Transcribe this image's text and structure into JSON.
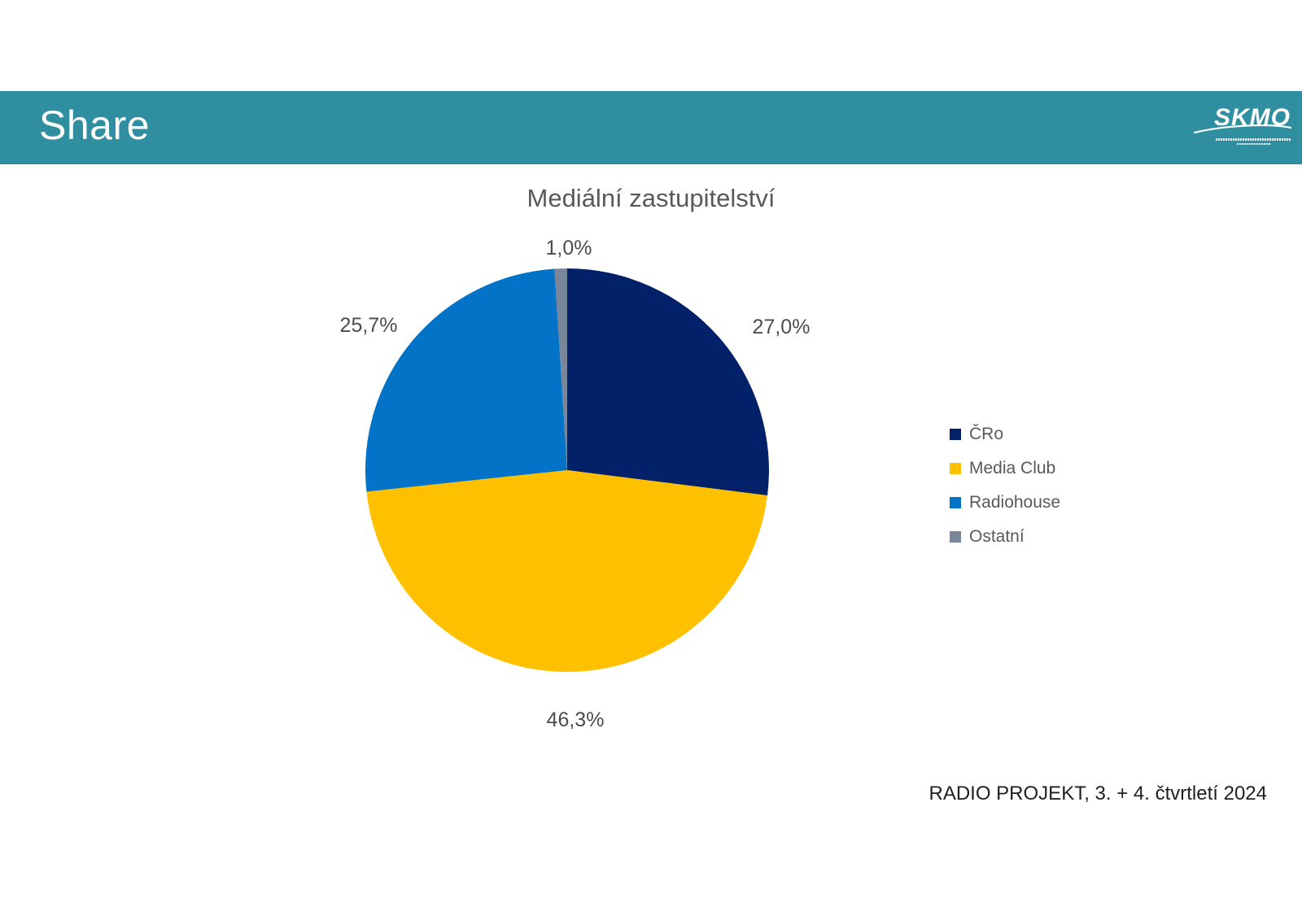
{
  "slide": {
    "header": {
      "title": "Share"
    },
    "logo": {
      "name": "SKMO"
    },
    "footer": {
      "source": "RADIO PROJEKT, 3. + 4. čtvrtletí 2024"
    }
  },
  "chart_data": {
    "type": "pie",
    "title": "Mediální zastupitelství",
    "categories": [
      "ČRo",
      "Media Club",
      "Radiohouse",
      "Ostatní"
    ],
    "values": [
      27.0,
      46.3,
      25.7,
      1.0
    ],
    "value_labels": [
      "27,0%",
      "46,3%",
      "25,7%",
      "1,0%"
    ],
    "colors": [
      "#032169",
      "#ffc000",
      "#0273c6",
      "#79869a"
    ],
    "legend_position": "right",
    "start_angle_deg": 0,
    "direction": "clockwise",
    "decimal_separator": "comma",
    "header_accent_color": "#2f8fa1"
  }
}
